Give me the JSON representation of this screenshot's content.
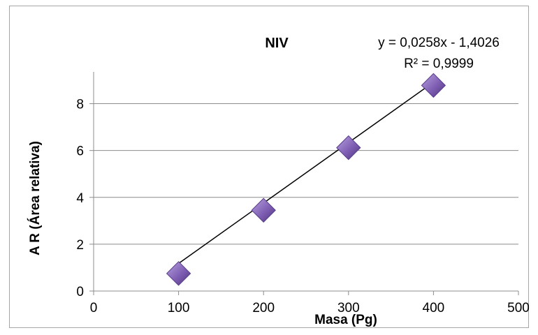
{
  "chart_data": {
    "type": "scatter",
    "title": "NIV",
    "xlabel": "Masa (Pg)",
    "ylabel": "A R (Área relativa)",
    "xlim": [
      0,
      500
    ],
    "ylim": [
      0,
      9
    ],
    "xticks": [
      0,
      100,
      200,
      300,
      400,
      500
    ],
    "yticks": [
      0,
      2,
      4,
      6,
      8
    ],
    "grid": "horizontal",
    "legend": "none",
    "series": [
      {
        "x": [
          100,
          200,
          300,
          400
        ],
        "y": [
          0.75,
          3.45,
          6.12,
          8.78
        ],
        "marker": "diamond",
        "color": "#7f5fb3"
      }
    ],
    "trendline": {
      "type": "linear",
      "slope": 0.0258,
      "intercept": -1.4026,
      "x_range": [
        100,
        400
      ],
      "color": "#000000",
      "equation_label": "y = 0,0258x - 1,4026",
      "r2_label": "R² = 0,9999"
    }
  }
}
